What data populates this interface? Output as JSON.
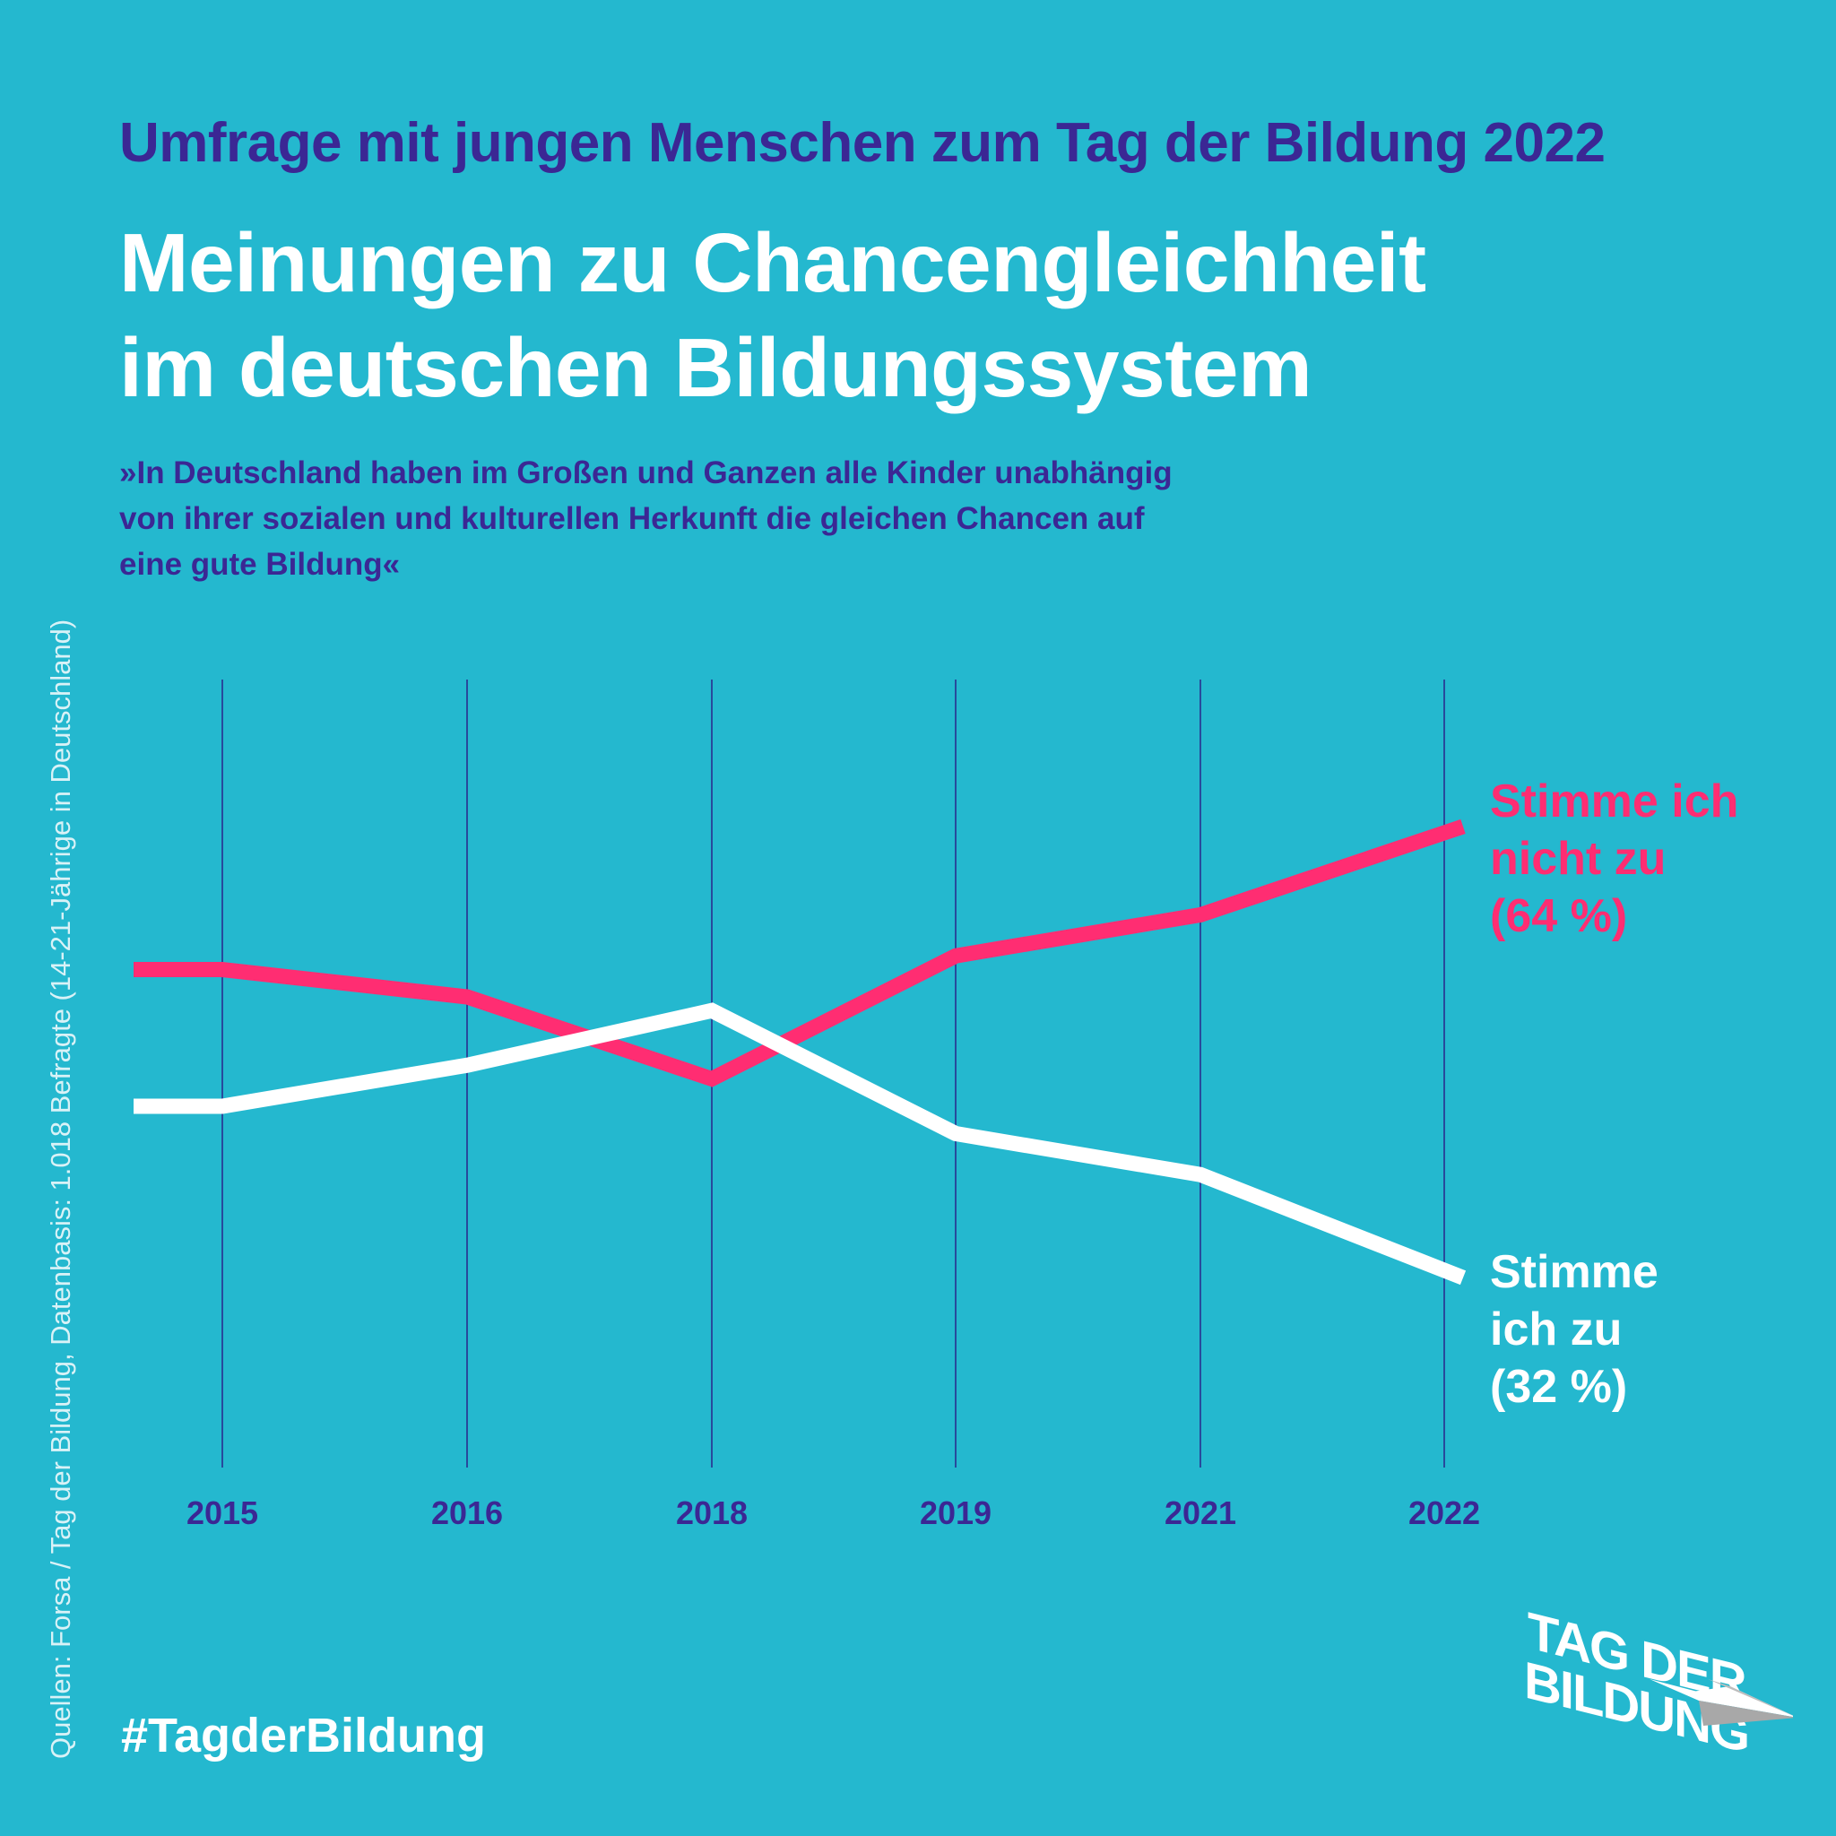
{
  "header": {
    "subtitle": "Umfrage mit jungen Menschen zum Tag der Bildung 2022",
    "title_lines": [
      "Meinungen zu Chancengleichheit",
      "im deutschen Bildungssystem"
    ],
    "quote_lines": [
      "»In Deutschland haben im Großen und Ganzen alle Kinder unabhängig",
      "von ihrer sozialen und kulturellen Herkunft die gleichen Chancen auf",
      "eine gute Bildung«"
    ]
  },
  "source": "Quellen: Forsa / Tag der Bildung, Datenbasis: 1.018 Befragte (14-21-Jährige in Deutschland)",
  "footer": {
    "hashtag": "#TagderBildung",
    "logo_line1": "TAG DER",
    "logo_line2": "BILDUNG"
  },
  "colors": {
    "background": "#24b8cf",
    "text_dark": "#3b2794",
    "disagree": "#ff2d72",
    "agree": "#ffffff",
    "gridline": "#2a2f8f"
  },
  "chart_data": {
    "type": "line",
    "title": "Meinungen zu Chancengleichheit im deutschen Bildungssystem",
    "xlabel": "",
    "ylabel": "",
    "x": [
      "2015",
      "2016",
      "2018",
      "2019",
      "2021",
      "2022"
    ],
    "series": [
      {
        "name": "Stimme ich nicht zu",
        "label_lines": [
          "Stimme ich",
          "nicht zu",
          "(64 %)"
        ],
        "values": [
          54,
          52,
          46,
          55,
          58,
          64
        ],
        "color": "#ff2d72"
      },
      {
        "name": "Stimme ich zu",
        "label_lines": [
          "Stimme",
          "ich zu",
          "(32 %)"
        ],
        "values": [
          44,
          47,
          51,
          42,
          39,
          32
        ],
        "color": "#ffffff"
      }
    ],
    "ylim": [
      20,
      90
    ],
    "grid": "vertical",
    "legend": "right (direct labels)",
    "unit": "%"
  }
}
